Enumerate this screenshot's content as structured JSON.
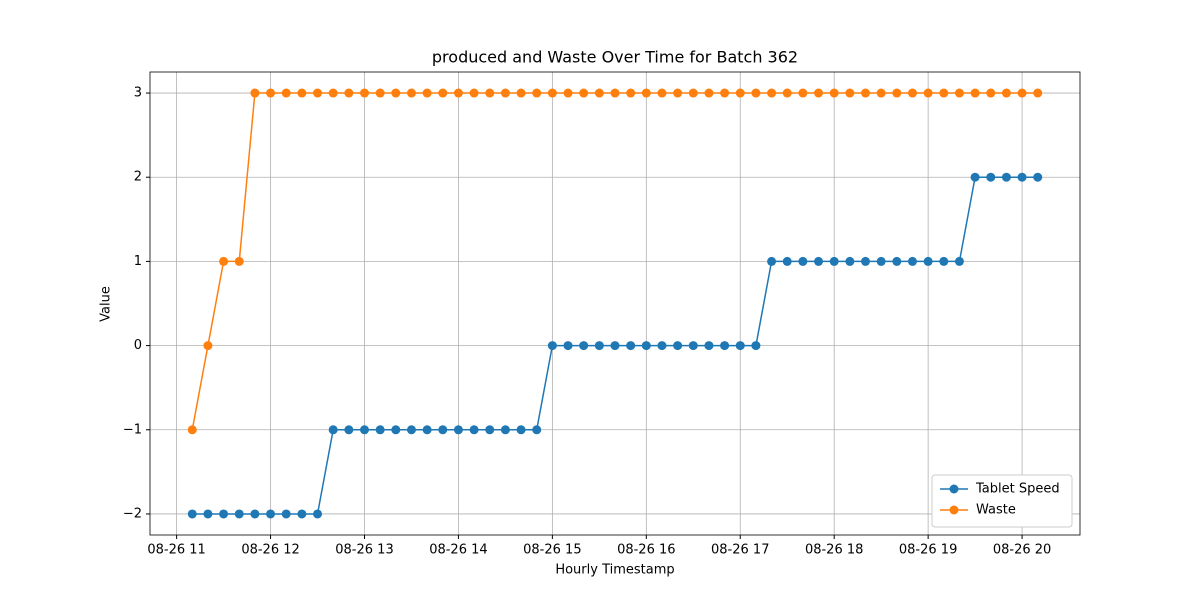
{
  "chart_data": {
    "type": "line",
    "title": "produced and Waste Over Time for Batch 362",
    "xlabel": "Hourly Timestamp",
    "ylabel": "Value",
    "x": [
      670,
      680,
      690,
      700,
      710,
      720,
      730,
      740,
      750,
      760,
      770,
      780,
      790,
      800,
      810,
      820,
      830,
      840,
      850,
      860,
      870,
      880,
      890,
      900,
      910,
      920,
      930,
      940,
      950,
      960,
      970,
      980,
      990,
      1000,
      1010,
      1020,
      1030,
      1040,
      1050,
      1060,
      1070,
      1080,
      1090,
      1100,
      1110,
      1120,
      1130,
      1140,
      1150,
      1160,
      1170,
      1180,
      1190,
      1200,
      1210
    ],
    "series": [
      {
        "name": "Tablet Speed",
        "color": "#1f77b4",
        "values": [
          -2,
          -2,
          -2,
          -2,
          -2,
          -2,
          -2,
          -2,
          -2,
          -1,
          -1,
          -1,
          -1,
          -1,
          -1,
          -1,
          -1,
          -1,
          -1,
          -1,
          -1,
          -1,
          -1,
          0,
          0,
          0,
          0,
          0,
          0,
          0,
          0,
          0,
          0,
          0,
          0,
          0,
          0,
          1,
          1,
          1,
          1,
          1,
          1,
          1,
          1,
          1,
          1,
          1,
          1,
          1,
          2,
          2,
          2,
          2,
          2
        ]
      },
      {
        "name": "Waste",
        "color": "#ff7f0e",
        "values": [
          -1,
          0,
          1,
          1,
          3,
          3,
          3,
          3,
          3,
          3,
          3,
          3,
          3,
          3,
          3,
          3,
          3,
          3,
          3,
          3,
          3,
          3,
          3,
          3,
          3,
          3,
          3,
          3,
          3,
          3,
          3,
          3,
          3,
          3,
          3,
          3,
          3,
          3,
          3,
          3,
          3,
          3,
          3,
          3,
          3,
          3,
          3,
          3,
          3,
          3,
          3,
          3,
          3,
          3,
          3
        ]
      }
    ],
    "xlim": [
      643,
      1237
    ],
    "xticks": [
      {
        "value": 660,
        "label": "08-26 11"
      },
      {
        "value": 720,
        "label": "08-26 12"
      },
      {
        "value": 780,
        "label": "08-26 13"
      },
      {
        "value": 840,
        "label": "08-26 14"
      },
      {
        "value": 900,
        "label": "08-26 15"
      },
      {
        "value": 960,
        "label": "08-26 16"
      },
      {
        "value": 1020,
        "label": "08-26 17"
      },
      {
        "value": 1080,
        "label": "08-26 18"
      },
      {
        "value": 1140,
        "label": "08-26 19"
      },
      {
        "value": 1200,
        "label": "08-26 20"
      }
    ],
    "ylim": [
      -2.25,
      3.25
    ],
    "yticks": [
      {
        "value": -2,
        "label": "−2"
      },
      {
        "value": -1,
        "label": "−1"
      },
      0,
      1,
      2,
      3
    ],
    "grid": true,
    "legend": "lower right"
  }
}
